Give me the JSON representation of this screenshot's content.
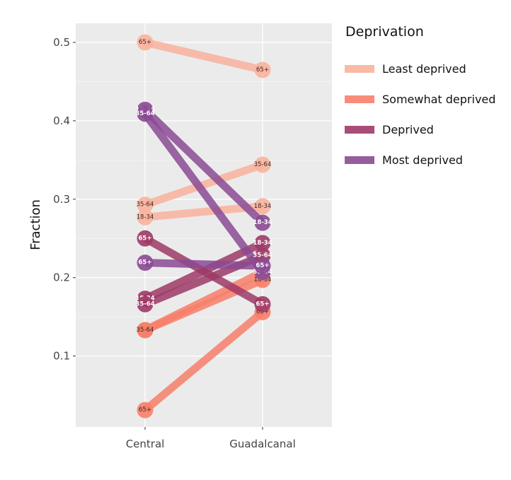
{
  "chart_data": {
    "type": "line",
    "title": "",
    "xlabel": "",
    "ylabel": "Fraction",
    "categories": [
      "Central",
      "Guadalcanal"
    ],
    "yticks": [
      "0.1",
      "0.2",
      "0.3",
      "0.4",
      "0.5"
    ],
    "ylim": [
      0.0,
      0.525
    ],
    "grid": true,
    "legend": {
      "title": "Deprivation",
      "placement": "right",
      "entries": [
        "Least deprived",
        "Somewhat deprived",
        "Deprived",
        "Most deprived"
      ]
    },
    "colors": {
      "Least deprived": "#f9b29c",
      "Somewhat deprived": "#f77f6a",
      "Deprived": "#9e3a66",
      "Most deprived": "#8b4a94"
    },
    "series": [
      {
        "group": "Least deprived",
        "label": "65+",
        "values": [
          0.5,
          0.465
        ]
      },
      {
        "group": "Least deprived",
        "label": "35-64",
        "values": [
          0.293,
          0.344
        ]
      },
      {
        "group": "Least deprived",
        "label": "18-34",
        "values": [
          0.277,
          0.291
        ]
      },
      {
        "group": "Somewhat deprived",
        "label": "18-34",
        "values": [
          0.133,
          0.197
        ]
      },
      {
        "group": "Somewhat deprived",
        "label": "35-64",
        "values": [
          0.133,
          0.207
        ]
      },
      {
        "group": "Somewhat deprived",
        "label": "65+",
        "values": [
          0.031,
          0.156
        ]
      },
      {
        "group": "Deprived",
        "label": "65+",
        "values": [
          0.25,
          0.166
        ]
      },
      {
        "group": "Deprived",
        "label": "18-34",
        "values": [
          0.173,
          0.244
        ]
      },
      {
        "group": "Deprived",
        "label": "35-64",
        "values": [
          0.166,
          0.228
        ]
      },
      {
        "group": "Most deprived",
        "label": "18-34",
        "values": [
          0.414,
          0.27
        ]
      },
      {
        "group": "Most deprived",
        "label": "35-64",
        "values": [
          0.409,
          0.207
        ]
      },
      {
        "group": "Most deprived",
        "label": "65+",
        "values": [
          0.219,
          0.215
        ]
      }
    ]
  }
}
